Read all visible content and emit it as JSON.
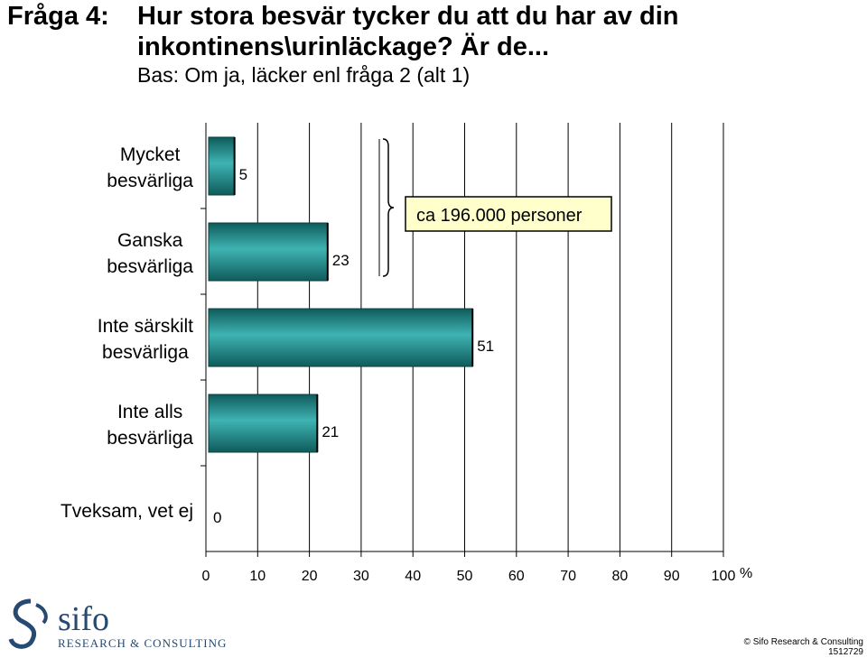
{
  "title": {
    "prefix": "Fråga 4:",
    "line1": "Hur stora besvär tycker du att du har av din",
    "line2": "inkontinens\\urinläckage? Är de...",
    "subtitle": "Bas: Om ja, läcker enl fråga 2 (alt 1)"
  },
  "chart_data": {
    "type": "bar",
    "orientation": "horizontal",
    "categories": [
      [
        "Mycket",
        "besvärliga"
      ],
      [
        "Ganska",
        "besvärliga"
      ],
      [
        "Inte särskilt",
        "besvärliga"
      ],
      [
        "Inte alls",
        "besvärliga"
      ],
      [
        "Tveksam, vet ej"
      ]
    ],
    "values": [
      5,
      23,
      51,
      21,
      0
    ],
    "xlim": [
      0,
      100
    ],
    "xticks": [
      "0",
      "10",
      "20",
      "30",
      "40",
      "50",
      "60",
      "70",
      "80",
      "90",
      "100"
    ],
    "xunit": "%",
    "grid": true,
    "bar_color": "#1f7d7d",
    "annotation": {
      "text": "ca 196.000 personer",
      "brackets": [
        0,
        1
      ]
    }
  },
  "footer": {
    "logo": "sifo",
    "logo_sub": "RESEARCH & CONSULTING",
    "copyright": "© Sifo Research & Consulting",
    "code": "1512729"
  }
}
